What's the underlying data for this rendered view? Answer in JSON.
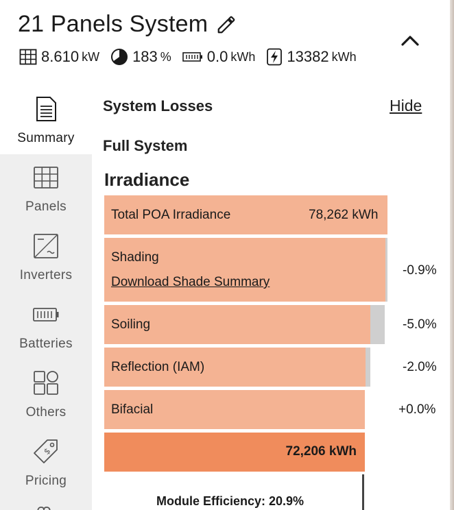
{
  "header": {
    "title": "21 Panels System",
    "stats": {
      "power_value": "8.610",
      "power_unit": "kW",
      "offset_value": "183",
      "offset_unit": "%",
      "battery_value": "0.0",
      "battery_unit": "kWh",
      "energy_value": "13382",
      "energy_unit": "kWh"
    },
    "icons": [
      "grid-icon",
      "pie-icon",
      "battery-icon",
      "bolt-icon",
      "pencil-icon",
      "chevron-up-icon"
    ]
  },
  "sidebar": {
    "items": [
      {
        "label": "Summary",
        "icon": "document-icon",
        "active": true
      },
      {
        "label": "Panels",
        "icon": "panels-icon"
      },
      {
        "label": "Inverters",
        "icon": "inverter-icon"
      },
      {
        "label": "Batteries",
        "icon": "battery-icon"
      },
      {
        "label": "Others",
        "icon": "others-icon"
      },
      {
        "label": "Pricing",
        "icon": "price-tag-icon"
      }
    ]
  },
  "main": {
    "section_title": "System Losses",
    "hide_label": "Hide",
    "subsection": "Full System",
    "group_title": "Irradiance",
    "rows": {
      "total_poa": {
        "label": "Total POA Irradiance",
        "value": "78,262 kWh"
      },
      "shading": {
        "label": "Shading",
        "link": "Download Shade Summary",
        "pct": "-0.9%"
      },
      "soiling": {
        "label": "Soiling",
        "pct": "-5.0%"
      },
      "reflection": {
        "label": "Reflection (IAM)",
        "pct": "-2.0%"
      },
      "bifacial": {
        "label": "Bifacial",
        "pct": "+0.0%"
      }
    },
    "total_value": "72,206 kWh",
    "module_efficiency": "Module Efficiency: 20.9%",
    "colors": {
      "loss_bar": "#f4b393",
      "total_bar": "#f08c5c",
      "loss_remainder": "#cfcfcf"
    }
  }
}
